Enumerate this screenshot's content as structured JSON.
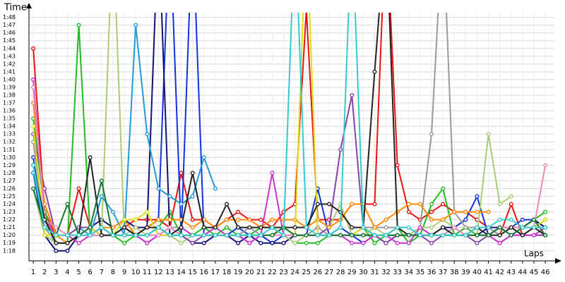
{
  "chart_data": {
    "type": "line",
    "y_label": "Time",
    "x_label": "Laps",
    "xlim": [
      0.62,
      46.8
    ],
    "ylim": [
      76.8,
      108.6
    ],
    "grid": true,
    "xticks": [
      1,
      2,
      3,
      4,
      5,
      6,
      7,
      8,
      9,
      10,
      11,
      12,
      13,
      14,
      15,
      16,
      17,
      18,
      19,
      20,
      21,
      22,
      23,
      24,
      25,
      26,
      27,
      28,
      29,
      30,
      31,
      32,
      33,
      34,
      35,
      36,
      37,
      38,
      39,
      40,
      41,
      42,
      43,
      44,
      45,
      46
    ],
    "yticks": [
      {
        "value": 78,
        "label": "1:18"
      },
      {
        "value": 79,
        "label": "1:19"
      },
      {
        "value": 80,
        "label": "1:20"
      },
      {
        "value": 81,
        "label": "1:21"
      },
      {
        "value": 82,
        "label": "1:22"
      },
      {
        "value": 83,
        "label": "1:23"
      },
      {
        "value": 84,
        "label": "1:24"
      },
      {
        "value": 85,
        "label": "1:25"
      },
      {
        "value": 86,
        "label": "1:26"
      },
      {
        "value": 87,
        "label": "1:27"
      },
      {
        "value": 88,
        "label": "1:28"
      },
      {
        "value": 89,
        "label": "1:29"
      },
      {
        "value": 90,
        "label": "1:30"
      },
      {
        "value": 91,
        "label": "1:31"
      },
      {
        "value": 92,
        "label": "1:32"
      },
      {
        "value": 93,
        "label": "1:33"
      },
      {
        "value": 94,
        "label": "1:34"
      },
      {
        "value": 95,
        "label": "1:35"
      },
      {
        "value": 96,
        "label": "1:36"
      },
      {
        "value": 97,
        "label": "1:37"
      },
      {
        "value": 98,
        "label": "1:38"
      },
      {
        "value": 99,
        "label": "1:39"
      },
      {
        "value": 100,
        "label": "1:40"
      },
      {
        "value": 101,
        "label": "1:41"
      },
      {
        "value": 102,
        "label": "1:42"
      },
      {
        "value": 103,
        "label": "1:43"
      },
      {
        "value": 104,
        "label": "1:44"
      },
      {
        "value": 105,
        "label": "1:45"
      },
      {
        "value": 106,
        "label": "1:46"
      },
      {
        "value": 107,
        "label": "1:47"
      },
      {
        "value": 108,
        "label": "1:48"
      }
    ],
    "x": [
      1,
      2,
      3,
      4,
      5,
      6,
      7,
      8,
      9,
      10,
      11,
      12,
      13,
      14,
      15,
      16,
      17,
      18,
      19,
      20,
      21,
      22,
      23,
      24,
      25,
      26,
      27,
      28,
      29,
      30,
      31,
      32,
      33,
      34,
      35,
      36,
      37,
      38,
      39,
      40,
      41,
      42,
      43,
      44,
      45,
      46
    ],
    "series": [
      {
        "color": "#ee1111",
        "values": [
          104,
          83,
          80,
          80,
          86,
          81,
          80,
          80,
          81,
          82,
          82,
          82,
          81,
          88,
          82,
          82,
          81,
          82,
          83,
          82,
          82,
          81,
          83,
          84,
          109,
          82,
          82,
          82,
          84,
          84,
          84,
          121,
          89,
          83,
          82,
          83,
          84,
          83,
          83,
          82,
          81,
          80,
          84,
          80,
          80,
          80
        ]
      },
      {
        "color": "#22bb22",
        "values": [
          95,
          83,
          79,
          79,
          107,
          80,
          81,
          80,
          79,
          80,
          80,
          81,
          83,
          80,
          80,
          81,
          80,
          81,
          80,
          80,
          81,
          81,
          80,
          79,
          79,
          79,
          80,
          80,
          80,
          81,
          79,
          80,
          81,
          79,
          80,
          84,
          86,
          80,
          81,
          80,
          80,
          81,
          80,
          81,
          82,
          83
        ]
      },
      {
        "color": "#1133dd",
        "values": [
          90,
          80,
          79,
          79,
          80,
          80,
          80,
          80,
          81,
          80,
          81,
          82,
          120,
          80,
          120,
          80,
          80,
          80,
          81,
          80,
          80,
          79,
          80,
          80,
          80,
          86,
          80,
          81,
          80,
          79,
          80,
          80,
          80,
          80,
          80,
          80,
          80,
          81,
          82,
          85,
          80,
          81,
          81,
          82,
          82,
          81
        ]
      },
      {
        "color": "#111177",
        "values": [
          88,
          80,
          78,
          78,
          80,
          81,
          82,
          81,
          82,
          81,
          81,
          120,
          80,
          80,
          79,
          79,
          80,
          80,
          79,
          80,
          79,
          79,
          79,
          80,
          80,
          80,
          80,
          80,
          80,
          80,
          80,
          79,
          80,
          80,
          80,
          80,
          81,
          81,
          80,
          80,
          81,
          81,
          81,
          81,
          82,
          81
        ]
      },
      {
        "color": "#999999",
        "values": [
          92,
          81,
          79,
          79,
          80,
          80,
          81,
          80,
          80,
          80,
          80,
          80,
          81,
          81,
          80,
          80,
          81,
          80,
          80,
          81,
          80,
          80,
          81,
          80,
          80,
          81,
          80,
          80,
          80,
          81,
          81,
          81,
          81,
          80,
          81,
          93,
          120,
          83,
          81,
          81,
          81,
          80,
          81,
          80,
          81,
          82
        ]
      },
      {
        "color": "#aacc77",
        "values": [
          86,
          80,
          79,
          79,
          80,
          80,
          80,
          120,
          80,
          81,
          80,
          80,
          80,
          79,
          80,
          80,
          80,
          80,
          80,
          80,
          80,
          80,
          80,
          79,
          80,
          80,
          81,
          84,
          80,
          80,
          81,
          80,
          81,
          80,
          81,
          81,
          82,
          81,
          80,
          80,
          93,
          84,
          85,
          null,
          null,
          null
        ]
      },
      {
        "color": "#2299dd",
        "values": [
          88,
          81,
          80,
          80,
          81,
          80,
          85,
          83,
          80,
          107,
          93,
          86,
          85,
          84,
          85,
          90,
          86,
          null,
          null,
          null,
          null,
          null,
          null,
          null,
          null,
          null,
          null,
          null,
          null,
          null,
          null,
          null,
          null,
          null,
          null,
          null,
          null,
          null,
          null,
          null,
          null,
          null,
          null,
          null,
          null,
          null
        ]
      },
      {
        "color": "#8844aa",
        "values": [
          93,
          86,
          80,
          80,
          81,
          81,
          80,
          80,
          80,
          80,
          79,
          80,
          80,
          80,
          79,
          80,
          80,
          80,
          80,
          79,
          80,
          80,
          81,
          80,
          80,
          80,
          81,
          91,
          98,
          81,
          80,
          79,
          80,
          80,
          80,
          79,
          80,
          80,
          80,
          79,
          80,
          79,
          80,
          80,
          80,
          80
        ]
      },
      {
        "color": "#cc33cc",
        "values": [
          100,
          82,
          80,
          80,
          79,
          80,
          81,
          80,
          80,
          80,
          79,
          80,
          80,
          81,
          80,
          80,
          81,
          80,
          80,
          79,
          80,
          88,
          80,
          80,
          80,
          80,
          80,
          80,
          79,
          79,
          80,
          80,
          79,
          79,
          81,
          80,
          80,
          80,
          80,
          80,
          80,
          79,
          80,
          80,
          80,
          81
        ]
      },
      {
        "color": "#ff8800",
        "values": [
          97,
          84,
          80,
          79,
          80,
          80,
          81,
          81,
          82,
          80,
          81,
          82,
          82,
          82,
          81,
          82,
          81,
          82,
          82,
          82,
          81,
          82,
          82,
          82,
          81,
          82,
          81,
          82,
          84,
          84,
          81,
          82,
          83,
          84,
          84,
          82,
          82,
          83,
          83,
          83,
          83,
          null,
          null,
          null,
          null,
          null
        ]
      },
      {
        "color": "#dddd11",
        "values": [
          94,
          80,
          80,
          80,
          80,
          81,
          80,
          80,
          82,
          82,
          83,
          80,
          80,
          80,
          80,
          80,
          80,
          80,
          80,
          80,
          80,
          80,
          81,
          80,
          120,
          80,
          80,
          80,
          80,
          81,
          80,
          80,
          80,
          80,
          80,
          80,
          80,
          80,
          80,
          80,
          80,
          81,
          81,
          81,
          81,
          82
        ]
      },
      {
        "color": "#ee88bb",
        "values": [
          99,
          82,
          81,
          80,
          80,
          80,
          80,
          80,
          80,
          80,
          80,
          80,
          81,
          80,
          80,
          80,
          80,
          80,
          80,
          80,
          80,
          80,
          80,
          80,
          80,
          80,
          80,
          80,
          80,
          80,
          80,
          80,
          80,
          80,
          80,
          80,
          80,
          81,
          80,
          80,
          80,
          81,
          81,
          81,
          81,
          89
        ]
      },
      {
        "color": "#222222",
        "values": [
          89,
          82,
          79,
          79,
          80,
          90,
          80,
          80,
          81,
          80,
          81,
          81,
          80,
          81,
          88,
          81,
          81,
          84,
          81,
          81,
          81,
          81,
          81,
          81,
          81,
          84,
          84,
          83,
          81,
          81,
          101,
          120,
          81,
          80,
          80,
          80,
          81,
          80,
          80,
          81,
          80,
          80,
          81,
          80,
          81,
          80
        ]
      },
      {
        "color": "#117733",
        "values": [
          86,
          81,
          80,
          84,
          80,
          81,
          87,
          80,
          80,
          80,
          80,
          81,
          80,
          80,
          80,
          80,
          80,
          80,
          80,
          80,
          80,
          80,
          81,
          80,
          80,
          80,
          80,
          80,
          80,
          80,
          80,
          80,
          80,
          80,
          80,
          80,
          80,
          80,
          80,
          80,
          80,
          81,
          80,
          81,
          82,
          80
        ]
      },
      {
        "color": "#33cccc",
        "values": [
          89,
          81,
          80,
          80,
          80,
          80,
          81,
          80,
          80,
          80,
          80,
          81,
          80,
          80,
          80,
          80,
          80,
          80,
          80,
          80,
          80,
          81,
          80,
          120,
          81,
          80,
          80,
          81,
          120,
          81,
          80,
          80,
          81,
          81,
          80,
          80,
          80,
          80,
          80,
          81,
          81,
          82,
          82,
          81,
          81,
          81
        ]
      }
    ]
  }
}
